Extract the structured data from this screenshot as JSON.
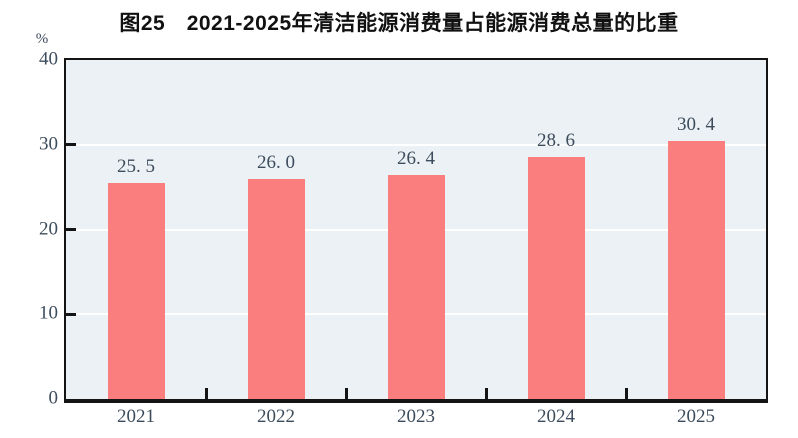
{
  "chart": {
    "title": "图25　2021-2025年清洁能源消费量占能源消费总量的比重",
    "unit_label": "%"
  },
  "chart_data": {
    "type": "bar",
    "title": "图25　2021-2025年清洁能源消费量占能源消费总量的比重",
    "unit_label": "%",
    "categories": [
      "2021",
      "2022",
      "2023",
      "2024",
      "2025"
    ],
    "values": [
      25.5,
      26.0,
      26.4,
      28.6,
      30.4
    ],
    "bar_display_labels": [
      "25. 5",
      "26. 0",
      "26. 4",
      "28. 6",
      "30. 4"
    ],
    "xlabel": "",
    "ylabel": "%",
    "ylim": [
      0,
      40
    ],
    "yticks": [
      0,
      10,
      20,
      30,
      40
    ],
    "grid": "horizontal white gridlines at 10, 20, 30",
    "legend": "none",
    "colors": {
      "bar_fill": "#FB7E7E",
      "plot_background": "#EBF1F5",
      "gridline": "#FFFFFF",
      "frame": "#141414",
      "tick_text": "#3d4c5c",
      "title_text": "#111111",
      "page_background": "#FFFFFF"
    }
  }
}
